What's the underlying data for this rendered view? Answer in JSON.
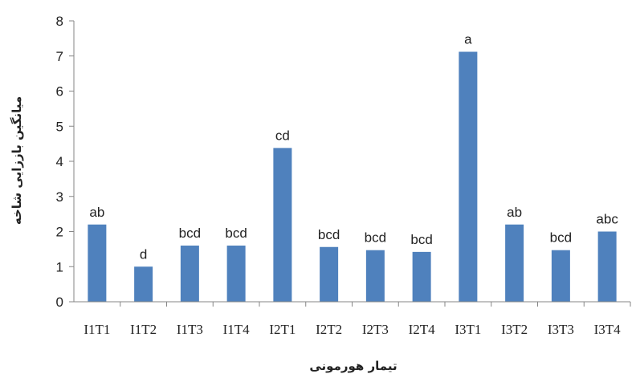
{
  "chart_data": {
    "type": "bar",
    "categories": [
      "I1T1",
      "I1T2",
      "I1T3",
      "I1T4",
      "I2T1",
      "I2T2",
      "I2T3",
      "I2T4",
      "I3T1",
      "I3T2",
      "I3T3",
      "I3T4"
    ],
    "values": [
      2.2,
      1.0,
      1.6,
      1.6,
      4.38,
      1.56,
      1.47,
      1.42,
      7.12,
      2.2,
      1.47,
      2.0
    ],
    "bar_labels": [
      "ab",
      "d",
      "bcd",
      "bcd",
      "cd",
      "bcd",
      "bcd",
      "bcd",
      "a",
      "ab",
      "bcd",
      "abc"
    ],
    "title": "",
    "xlabel": "تیمار هورمونی",
    "ylabel": "میانگین باززایی شاخه",
    "ylim": [
      0,
      8
    ],
    "yticks": [
      "0",
      "1",
      "2",
      "3",
      "4",
      "5",
      "6",
      "7",
      "8"
    ],
    "grid": false,
    "legend": "none",
    "bar_color": "#4f81bd"
  }
}
